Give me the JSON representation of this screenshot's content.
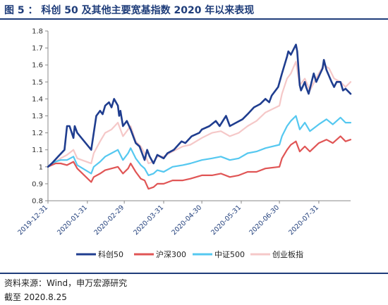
{
  "title": "图 5 ： 科创 50 及其他主要宽基指数 2020 年以来表现",
  "source": "资料来源：Wind，申万宏源研究",
  "date": "截至 2020.8.25",
  "chart_data": {
    "type": "line",
    "ylim": [
      0.8,
      1.8
    ],
    "yticks": [
      "0.8",
      "0.9",
      "1",
      "1.1",
      "1.2",
      "1.3",
      "1.4",
      "1.5",
      "1.6",
      "1.7",
      "1.8"
    ],
    "xticks": [
      "2019-12-31",
      "2020-01-31",
      "2020-02-29",
      "2020-03-31",
      "2020-04-30",
      "2020-05-31",
      "2020-06-30",
      "2020-07-31"
    ],
    "x_start": "2019-12-31",
    "x_end": "2020-08-25",
    "grid": false,
    "legend_position": "bottom",
    "series": [
      {
        "name": "科创50",
        "color": "#1f3d8f",
        "points": [
          [
            "2019-12-31",
            1.0
          ],
          [
            "2020-01-03",
            1.02
          ],
          [
            "2020-01-08",
            1.06
          ],
          [
            "2020-01-13",
            1.1
          ],
          [
            "2020-01-15",
            1.24
          ],
          [
            "2020-01-17",
            1.24
          ],
          [
            "2020-01-20",
            1.17
          ],
          [
            "2020-01-21",
            1.24
          ],
          [
            "2020-01-23",
            1.2
          ],
          [
            "2020-02-03",
            1.1
          ],
          [
            "2020-02-05",
            1.2
          ],
          [
            "2020-02-07",
            1.3
          ],
          [
            "2020-02-10",
            1.33
          ],
          [
            "2020-02-12",
            1.31
          ],
          [
            "2020-02-14",
            1.36
          ],
          [
            "2020-02-17",
            1.38
          ],
          [
            "2020-02-19",
            1.35
          ],
          [
            "2020-02-21",
            1.4
          ],
          [
            "2020-02-24",
            1.36
          ],
          [
            "2020-02-25",
            1.3
          ],
          [
            "2020-02-26",
            1.33
          ],
          [
            "2020-02-28",
            1.24
          ],
          [
            "2020-03-02",
            1.27
          ],
          [
            "2020-03-05",
            1.22
          ],
          [
            "2020-03-09",
            1.14
          ],
          [
            "2020-03-12",
            1.12
          ],
          [
            "2020-03-16",
            1.04
          ],
          [
            "2020-03-18",
            1.1
          ],
          [
            "2020-03-20",
            1.06
          ],
          [
            "2020-03-23",
            1.02
          ],
          [
            "2020-03-26",
            1.07
          ],
          [
            "2020-03-31",
            1.05
          ],
          [
            "2020-04-03",
            1.08
          ],
          [
            "2020-04-08",
            1.1
          ],
          [
            "2020-04-14",
            1.15
          ],
          [
            "2020-04-17",
            1.14
          ],
          [
            "2020-04-22",
            1.18
          ],
          [
            "2020-04-28",
            1.2
          ],
          [
            "2020-04-30",
            1.22
          ],
          [
            "2020-05-06",
            1.24
          ],
          [
            "2020-05-11",
            1.27
          ],
          [
            "2020-05-14",
            1.24
          ],
          [
            "2020-05-19",
            1.3
          ],
          [
            "2020-05-22",
            1.24
          ],
          [
            "2020-05-27",
            1.26
          ],
          [
            "2020-06-01",
            1.28
          ],
          [
            "2020-06-05",
            1.31
          ],
          [
            "2020-06-10",
            1.35
          ],
          [
            "2020-06-15",
            1.37
          ],
          [
            "2020-06-19",
            1.4
          ],
          [
            "2020-06-22",
            1.38
          ],
          [
            "2020-06-24",
            1.42
          ],
          [
            "2020-06-29",
            1.47
          ],
          [
            "2020-07-02",
            1.55
          ],
          [
            "2020-07-06",
            1.65
          ],
          [
            "2020-07-07",
            1.68
          ],
          [
            "2020-07-09",
            1.66
          ],
          [
            "2020-07-13",
            1.72
          ],
          [
            "2020-07-14",
            1.68
          ],
          [
            "2020-07-16",
            1.48
          ],
          [
            "2020-07-17",
            1.45
          ],
          [
            "2020-07-20",
            1.5
          ],
          [
            "2020-07-21",
            1.47
          ],
          [
            "2020-07-23",
            1.43
          ],
          [
            "2020-07-27",
            1.55
          ],
          [
            "2020-07-29",
            1.5
          ],
          [
            "2020-08-03",
            1.58
          ],
          [
            "2020-08-04",
            1.63
          ],
          [
            "2020-08-06",
            1.57
          ],
          [
            "2020-08-10",
            1.5
          ],
          [
            "2020-08-12",
            1.47
          ],
          [
            "2020-08-14",
            1.5
          ],
          [
            "2020-08-17",
            1.5
          ],
          [
            "2020-08-19",
            1.45
          ],
          [
            "2020-08-21",
            1.46
          ],
          [
            "2020-08-25",
            1.43
          ]
        ]
      },
      {
        "name": "沪深300",
        "color": "#e05555",
        "points": [
          [
            "2019-12-31",
            1.0
          ],
          [
            "2020-01-06",
            1.02
          ],
          [
            "2020-01-10",
            1.02
          ],
          [
            "2020-01-15",
            1.01
          ],
          [
            "2020-01-20",
            1.03
          ],
          [
            "2020-01-23",
            0.99
          ],
          [
            "2020-02-03",
            0.91
          ],
          [
            "2020-02-05",
            0.94
          ],
          [
            "2020-02-10",
            0.96
          ],
          [
            "2020-02-14",
            0.98
          ],
          [
            "2020-02-19",
            0.99
          ],
          [
            "2020-02-24",
            1.0
          ],
          [
            "2020-02-28",
            0.96
          ],
          [
            "2020-03-03",
            0.99
          ],
          [
            "2020-03-05",
            1.02
          ],
          [
            "2020-03-09",
            0.97
          ],
          [
            "2020-03-13",
            0.93
          ],
          [
            "2020-03-16",
            0.92
          ],
          [
            "2020-03-19",
            0.87
          ],
          [
            "2020-03-23",
            0.88
          ],
          [
            "2020-03-26",
            0.9
          ],
          [
            "2020-03-31",
            0.9
          ],
          [
            "2020-04-07",
            0.92
          ],
          [
            "2020-04-15",
            0.92
          ],
          [
            "2020-04-21",
            0.93
          ],
          [
            "2020-04-30",
            0.95
          ],
          [
            "2020-05-08",
            0.95
          ],
          [
            "2020-05-15",
            0.96
          ],
          [
            "2020-05-22",
            0.94
          ],
          [
            "2020-05-29",
            0.95
          ],
          [
            "2020-06-05",
            0.97
          ],
          [
            "2020-06-12",
            0.97
          ],
          [
            "2020-06-19",
            0.99
          ],
          [
            "2020-06-30",
            1.0
          ],
          [
            "2020-07-02",
            1.05
          ],
          [
            "2020-07-06",
            1.1
          ],
          [
            "2020-07-09",
            1.13
          ],
          [
            "2020-07-13",
            1.15
          ],
          [
            "2020-07-16",
            1.09
          ],
          [
            "2020-07-20",
            1.12
          ],
          [
            "2020-07-24",
            1.09
          ],
          [
            "2020-07-31",
            1.14
          ],
          [
            "2020-08-06",
            1.16
          ],
          [
            "2020-08-11",
            1.14
          ],
          [
            "2020-08-17",
            1.18
          ],
          [
            "2020-08-21",
            1.15
          ],
          [
            "2020-08-25",
            1.16
          ]
        ]
      },
      {
        "name": "中证500",
        "color": "#55c8f0",
        "points": [
          [
            "2019-12-31",
            1.0
          ],
          [
            "2020-01-06",
            1.03
          ],
          [
            "2020-01-10",
            1.04
          ],
          [
            "2020-01-15",
            1.04
          ],
          [
            "2020-01-20",
            1.06
          ],
          [
            "2020-01-23",
            1.01
          ],
          [
            "2020-02-03",
            0.96
          ],
          [
            "2020-02-05",
            1.0
          ],
          [
            "2020-02-10",
            1.03
          ],
          [
            "2020-02-14",
            1.06
          ],
          [
            "2020-02-19",
            1.08
          ],
          [
            "2020-02-24",
            1.1
          ],
          [
            "2020-02-28",
            1.04
          ],
          [
            "2020-03-03",
            1.08
          ],
          [
            "2020-03-05",
            1.11
          ],
          [
            "2020-03-09",
            1.05
          ],
          [
            "2020-03-13",
            1.01
          ],
          [
            "2020-03-16",
            0.99
          ],
          [
            "2020-03-19",
            0.95
          ],
          [
            "2020-03-23",
            0.96
          ],
          [
            "2020-03-26",
            0.98
          ],
          [
            "2020-03-31",
            0.97
          ],
          [
            "2020-04-07",
            1.0
          ],
          [
            "2020-04-15",
            1.01
          ],
          [
            "2020-04-21",
            1.02
          ],
          [
            "2020-04-30",
            1.04
          ],
          [
            "2020-05-08",
            1.05
          ],
          [
            "2020-05-15",
            1.06
          ],
          [
            "2020-05-22",
            1.04
          ],
          [
            "2020-05-29",
            1.05
          ],
          [
            "2020-06-05",
            1.08
          ],
          [
            "2020-06-12",
            1.09
          ],
          [
            "2020-06-19",
            1.11
          ],
          [
            "2020-06-30",
            1.13
          ],
          [
            "2020-07-02",
            1.18
          ],
          [
            "2020-07-06",
            1.24
          ],
          [
            "2020-07-09",
            1.27
          ],
          [
            "2020-07-13",
            1.3
          ],
          [
            "2020-07-16",
            1.22
          ],
          [
            "2020-07-20",
            1.26
          ],
          [
            "2020-07-24",
            1.21
          ],
          [
            "2020-07-31",
            1.25
          ],
          [
            "2020-08-06",
            1.28
          ],
          [
            "2020-08-11",
            1.25
          ],
          [
            "2020-08-17",
            1.29
          ],
          [
            "2020-08-21",
            1.26
          ],
          [
            "2020-08-25",
            1.26
          ]
        ]
      },
      {
        "name": "创业板指",
        "color": "#f5c8c8",
        "points": [
          [
            "2019-12-31",
            1.0
          ],
          [
            "2020-01-06",
            1.03
          ],
          [
            "2020-01-10",
            1.05
          ],
          [
            "2020-01-15",
            1.07
          ],
          [
            "2020-01-20",
            1.1
          ],
          [
            "2020-01-23",
            1.05
          ],
          [
            "2020-02-03",
            1.02
          ],
          [
            "2020-02-05",
            1.08
          ],
          [
            "2020-02-10",
            1.15
          ],
          [
            "2020-02-14",
            1.2
          ],
          [
            "2020-02-19",
            1.22
          ],
          [
            "2020-02-24",
            1.26
          ],
          [
            "2020-02-28",
            1.18
          ],
          [
            "2020-03-03",
            1.22
          ],
          [
            "2020-03-05",
            1.24
          ],
          [
            "2020-03-09",
            1.15
          ],
          [
            "2020-03-13",
            1.12
          ],
          [
            "2020-03-16",
            1.08
          ],
          [
            "2020-03-19",
            1.02
          ],
          [
            "2020-03-23",
            1.03
          ],
          [
            "2020-03-26",
            1.06
          ],
          [
            "2020-03-31",
            1.06
          ],
          [
            "2020-04-07",
            1.09
          ],
          [
            "2020-04-15",
            1.12
          ],
          [
            "2020-04-21",
            1.13
          ],
          [
            "2020-04-30",
            1.17
          ],
          [
            "2020-05-08",
            1.2
          ],
          [
            "2020-05-15",
            1.21
          ],
          [
            "2020-05-22",
            1.18
          ],
          [
            "2020-05-29",
            1.2
          ],
          [
            "2020-06-05",
            1.24
          ],
          [
            "2020-06-12",
            1.27
          ],
          [
            "2020-06-19",
            1.32
          ],
          [
            "2020-06-30",
            1.36
          ],
          [
            "2020-07-02",
            1.43
          ],
          [
            "2020-07-06",
            1.52
          ],
          [
            "2020-07-09",
            1.55
          ],
          [
            "2020-07-13",
            1.62
          ],
          [
            "2020-07-16",
            1.48
          ],
          [
            "2020-07-20",
            1.52
          ],
          [
            "2020-07-24",
            1.45
          ],
          [
            "2020-07-31",
            1.55
          ],
          [
            "2020-08-04",
            1.6
          ],
          [
            "2020-08-08",
            1.58
          ],
          [
            "2020-08-12",
            1.52
          ],
          [
            "2020-08-17",
            1.5
          ],
          [
            "2020-08-21",
            1.47
          ],
          [
            "2020-08-25",
            1.5
          ]
        ]
      }
    ]
  }
}
